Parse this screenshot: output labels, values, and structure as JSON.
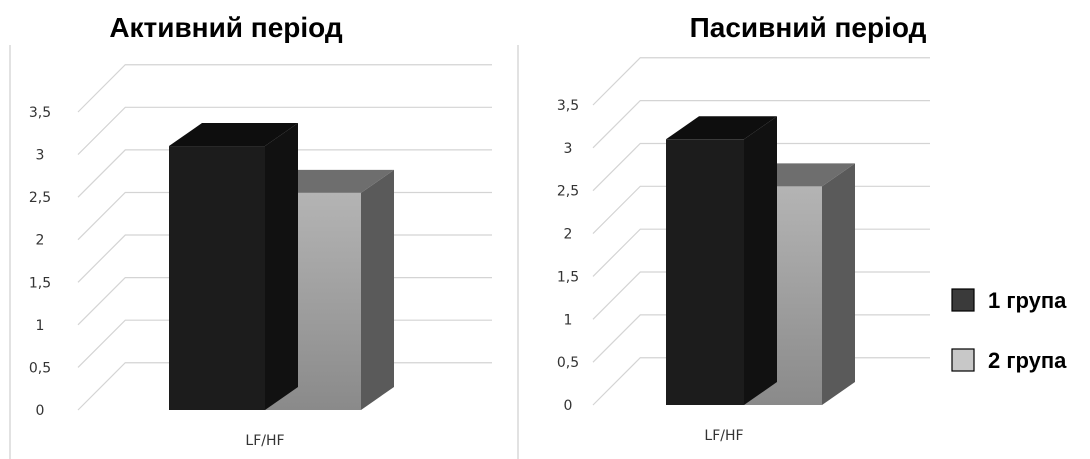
{
  "chart_data": [
    {
      "type": "bar",
      "title": "Активний період",
      "categories": [
        "LF/HF"
      ],
      "series": [
        {
          "name": "1 група",
          "values": [
            3.1
          ]
        },
        {
          "name": "2 група",
          "values": [
            2.55
          ]
        }
      ],
      "ylim": [
        0,
        3.5
      ],
      "yticks": [
        "0",
        "0,5",
        "1",
        "1,5",
        "2",
        "2,5",
        "3",
        "3,5"
      ],
      "grid": true,
      "style": "3d-column"
    },
    {
      "type": "bar",
      "title": "Пасивний період",
      "categories": [
        "LF/HF"
      ],
      "series": [
        {
          "name": "1 група",
          "values": [
            3.1
          ]
        },
        {
          "name": "2 група",
          "values": [
            2.55
          ]
        }
      ],
      "ylim": [
        0,
        3.5
      ],
      "yticks": [
        "0",
        "0,5",
        "1",
        "1,5",
        "2",
        "2,5",
        "3",
        "3,5"
      ],
      "grid": true,
      "style": "3d-column"
    }
  ],
  "legend": {
    "placement": "right",
    "items": [
      {
        "label": "1 група",
        "color": "#3a3a3a"
      },
      {
        "label": "2 група",
        "color": "#c8c8c8"
      }
    ]
  },
  "colors": {
    "series1_front": "#1c1c1c",
    "series1_top": "#0e0e0e",
    "series1_side": "#111111",
    "series2_top": "#6e6e6e",
    "series2_side": "#5a5a5a",
    "grid": "#d4d4d4",
    "divider": "#d9d9d9"
  }
}
